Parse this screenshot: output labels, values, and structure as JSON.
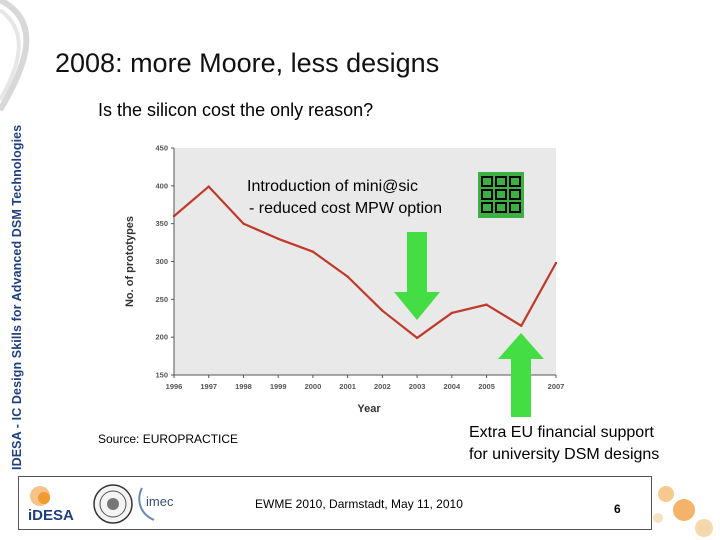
{
  "slide": {
    "side_text": "IDESA - IC Design Skills for Advanced DSM Technologies",
    "title": "2008: more Moore, less designs",
    "question": "Is the silicon cost the only reason?",
    "annotation_intro_line1": "Introduction of mini@sic",
    "annotation_intro_line2": "- reduced cost MPW option",
    "source": "Source: EUROPRACTICE",
    "annotation_support_line1": "Extra EU financial support",
    "annotation_support_line2": "for university DSM designs",
    "footer": "EWME 2010, Darmstadt, May 11, 2010",
    "page_number": "6",
    "logo_idesa_text": "iDESA",
    "logo_imec_text": "imec"
  },
  "colors": {
    "line": "#c0392b",
    "plot_background": "#e9e9e9",
    "arrow_green": "#44dd44",
    "grid_icon_fill": "#3cb043",
    "side_text": "#1f3f7f",
    "idesa_orange": "#f09a2f"
  },
  "icons": {
    "grid_icon": "mini-asic-grid-icon",
    "arrow_down": "green-down-arrow-icon",
    "arrow_up": "green-up-arrow-icon"
  },
  "chart_data": {
    "type": "line",
    "title": "",
    "xlabel": "Year",
    "ylabel": "No. of prototypes",
    "categories": [
      "1996",
      "1997",
      "1998",
      "1999",
      "2000",
      "2001",
      "2002",
      "2003",
      "2004",
      "2005",
      "2006",
      "2007"
    ],
    "series": [
      {
        "values": [
          360,
          399,
          350,
          330,
          313,
          280,
          235,
          199,
          232,
          243,
          215,
          298
        ]
      }
    ],
    "ylim": [
      150,
      450
    ],
    "yticks": [
      150,
      200,
      250,
      300,
      350,
      400,
      450
    ],
    "grid": false,
    "legend": "none"
  }
}
